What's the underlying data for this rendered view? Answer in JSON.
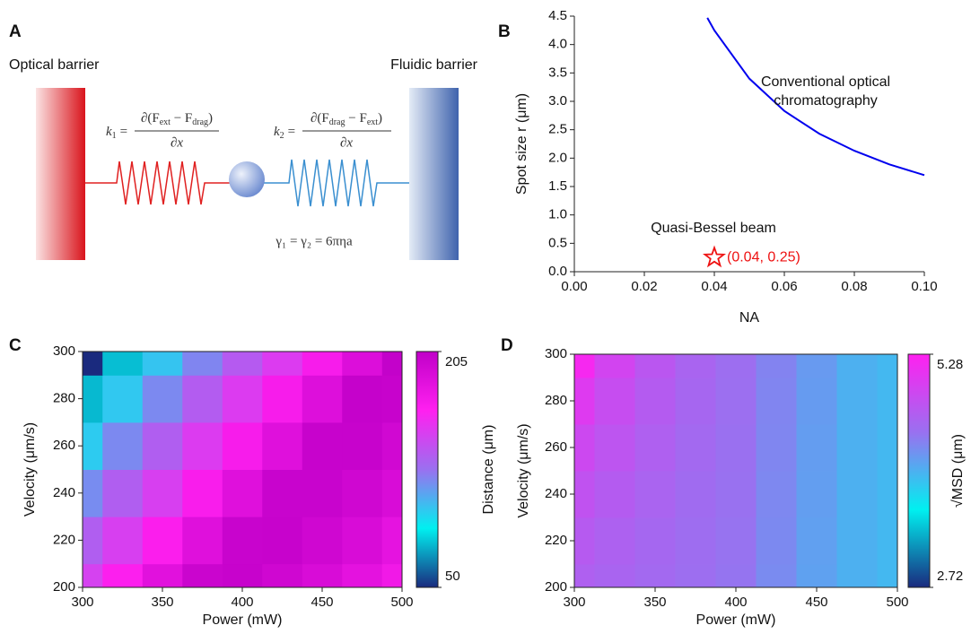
{
  "diagram": {
    "label": "A",
    "left_label": "Optical barrier",
    "right_label": "Fluidic barrier",
    "k1": {
      "k": "k",
      "sub": "1",
      "eq": "=",
      "num": "∂(F",
      "s1": "ext",
      "mid": " − F",
      "s2": "drag",
      "close": ")",
      "den": "∂x"
    },
    "k2": {
      "k": "k",
      "sub": "2",
      "eq": "=",
      "num": "∂(F",
      "s1": "drag",
      "mid": " − F",
      "s2": "ext",
      "close": ")",
      "den": "∂x"
    },
    "gamma": "γ₁ = γ₂ = 6πηa"
  },
  "chart_data": [
    {
      "type": "line",
      "label": "B",
      "xlabel": "NA",
      "ylabel": "Spot size r (μm)",
      "x": [
        0.038,
        0.04,
        0.05,
        0.06,
        0.07,
        0.08,
        0.09,
        0.1
      ],
      "series": [
        {
          "color": "#0000ee",
          "values": [
            4.47,
            4.25,
            3.4,
            2.83,
            2.43,
            2.13,
            1.89,
            1.7
          ]
        }
      ],
      "points": [
        {
          "x": 0.04,
          "y": 0.25,
          "label": "(0.04, 0.25)",
          "color": "#ee1111"
        }
      ],
      "annotations": [
        [
          "Conventional optical",
          "chromatography"
        ],
        [
          "Quasi-Bessel beam"
        ]
      ],
      "xlim": [
        0,
        0.1
      ],
      "ylim": [
        0,
        4.5
      ],
      "xticks": [
        {
          "value": 0,
          "label": "0.00"
        },
        0.02,
        0.04,
        0.06,
        0.08,
        {
          "value": 0.1,
          "label": "0.10"
        }
      ],
      "yticks": [
        {
          "value": 0,
          "label": "0.0"
        },
        0.5,
        {
          "value": 1,
          "label": "1.0"
        },
        1.5,
        {
          "value": 2,
          "label": "2.0"
        },
        2.5,
        {
          "value": 3,
          "label": "3.0"
        },
        3.5,
        {
          "value": 4,
          "label": "4.0"
        },
        4.5
      ]
    },
    {
      "type": "heatmap",
      "label": "C",
      "xlabel": "Power (mW)",
      "ylabel": "Velocity (μm/s)",
      "colorbar_label": "Distance (μm)",
      "x": [
        300,
        325,
        350,
        375,
        400,
        425,
        450,
        475,
        500
      ],
      "y": [
        200,
        220,
        240,
        260,
        280,
        300
      ],
      "values": [
        [
          150,
          168,
          185,
          199,
          201,
          196,
          190,
          183,
          175
        ],
        [
          136,
          151,
          169,
          186,
          200,
          201,
          196,
          190,
          182
        ],
        [
          119,
          136,
          151,
          170,
          186,
          200,
          200,
          196,
          190
        ],
        [
          100,
          120,
          136,
          153,
          171,
          186,
          201,
          201,
          195
        ],
        [
          78,
          101,
          120,
          137,
          153,
          171,
          187,
          202,
          201
        ],
        [
          50,
          79,
          102,
          121,
          138,
          153,
          171,
          188,
          203
        ]
      ],
      "colormap": [
        "#1a2a7e",
        "#00f0f0",
        "#9a70f0",
        "#ff20f0",
        "#c000c8"
      ],
      "colorbar_lim": [
        50,
        205
      ],
      "colorbar_ticks": [
        50,
        205
      ],
      "xlim": [
        300,
        500
      ],
      "ylim": [
        200,
        300
      ],
      "xticks": [
        300,
        350,
        400,
        450,
        500
      ],
      "yticks": [
        200,
        220,
        240,
        260,
        280,
        300
      ]
    },
    {
      "type": "heatmap",
      "label": "D",
      "xlabel": "Power (mW)",
      "ylabel": "Velocity (μm/s)",
      "colorbar_label": "√MSD (μm)",
      "x": [
        300,
        325,
        350,
        375,
        400,
        425,
        450,
        475,
        500
      ],
      "y": [
        200,
        220,
        240,
        260,
        280,
        300
      ],
      "values": [
        [
          4.6,
          4.55,
          4.5,
          4.45,
          4.4,
          4.25,
          4.1,
          4.0,
          3.95
        ],
        [
          4.66,
          4.59,
          4.52,
          4.46,
          4.41,
          4.26,
          4.11,
          4.0,
          3.95
        ],
        [
          4.75,
          4.65,
          4.56,
          4.48,
          4.42,
          4.27,
          4.12,
          4.0,
          3.95
        ],
        [
          4.85,
          4.72,
          4.6,
          4.5,
          4.43,
          4.28,
          4.13,
          4.0,
          3.95
        ],
        [
          5.0,
          4.8,
          4.65,
          4.53,
          4.44,
          4.29,
          4.14,
          4.0,
          3.95
        ],
        [
          5.2,
          4.9,
          4.7,
          4.55,
          4.45,
          4.3,
          4.15,
          4.0,
          3.95
        ]
      ],
      "colormap": [
        "#1a2a7e",
        "#00f0f0",
        "#9a70f0",
        "#ff20f0"
      ],
      "colorbar_lim": [
        2.72,
        5.28
      ],
      "colorbar_ticks": [
        2.72,
        5.28
      ],
      "xlim": [
        300,
        500
      ],
      "ylim": [
        200,
        300
      ],
      "xticks": [
        300,
        350,
        400,
        450,
        500
      ],
      "yticks": [
        200,
        220,
        240,
        260,
        280,
        300
      ]
    }
  ]
}
